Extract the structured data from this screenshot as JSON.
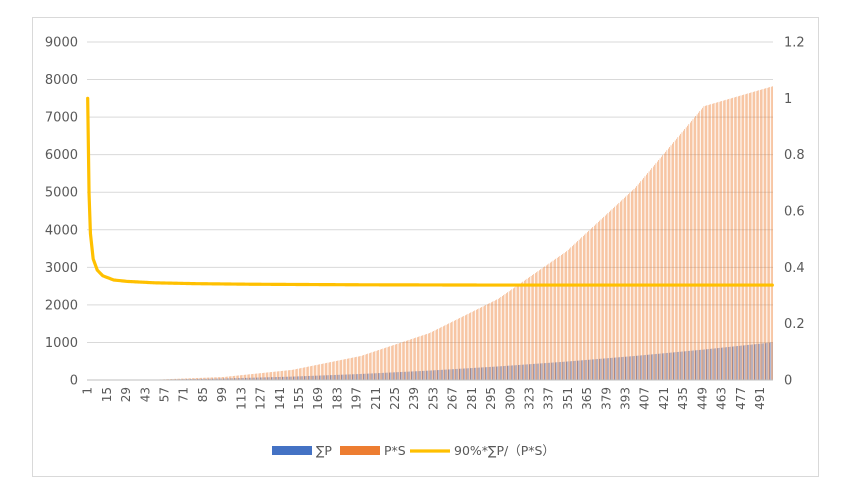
{
  "chart_data": {
    "type": "bar",
    "x_tick_labels": [
      "1",
      "15",
      "29",
      "43",
      "57",
      "71",
      "85",
      "99",
      "113",
      "127",
      "141",
      "155",
      "169",
      "183",
      "197",
      "211",
      "225",
      "239",
      "253",
      "267",
      "281",
      "295",
      "309",
      "323",
      "337",
      "351",
      "365",
      "379",
      "393",
      "407",
      "421",
      "435",
      "449",
      "463",
      "477",
      "491"
    ],
    "x_range": [
      1,
      500
    ],
    "y_left": {
      "ticks": [
        "0",
        "1000",
        "2000",
        "3000",
        "4000",
        "5000",
        "6000",
        "7000",
        "8000",
        "9000"
      ],
      "range": [
        0,
        9000
      ]
    },
    "y_right": {
      "ticks": [
        "0",
        "0.2",
        "0.4",
        "0.6",
        "0.8",
        "1",
        "1.2"
      ],
      "range": [
        0,
        1.2
      ]
    },
    "grid": true,
    "legend_position": "bottom",
    "series": [
      {
        "name": "∑P",
        "kind": "bar",
        "axis": "left",
        "color": "#4472C4",
        "x": [
          1,
          50,
          100,
          150,
          200,
          250,
          300,
          350,
          400,
          450,
          500
        ],
        "values": [
          0,
          10,
          40,
          90,
          160,
          250,
          360,
          490,
          640,
          810,
          1000
        ]
      },
      {
        "name": "P*S",
        "kind": "bar",
        "axis": "left",
        "color": "#ED7D31",
        "x": [
          1,
          50,
          100,
          150,
          200,
          250,
          300,
          350,
          400,
          450,
          500
        ],
        "values": [
          1,
          10,
          80,
          270,
          640,
          1250,
          2160,
          3430,
          5120,
          7290,
          7820
        ]
      },
      {
        "name": "90%*∑P/（P*S）",
        "kind": "line",
        "axis": "right",
        "color": "#FFC000",
        "x": [
          1,
          2,
          3,
          5,
          8,
          12,
          20,
          30,
          50,
          80,
          120,
          200,
          300,
          400,
          500
        ],
        "values": [
          1.0,
          0.66,
          0.52,
          0.43,
          0.39,
          0.37,
          0.355,
          0.35,
          0.345,
          0.342,
          0.34,
          0.338,
          0.337,
          0.337,
          0.337
        ]
      }
    ]
  }
}
